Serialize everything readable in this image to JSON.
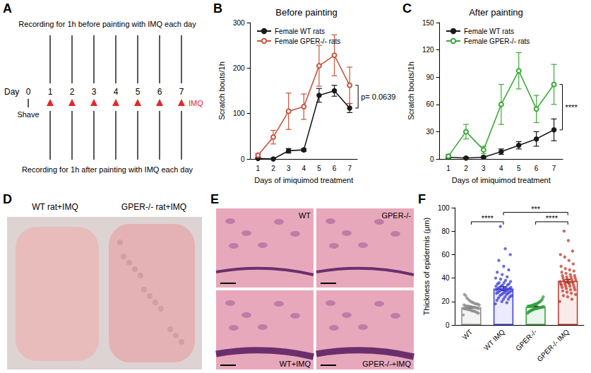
{
  "panel_labels": [
    "A",
    "B",
    "C",
    "D",
    "E",
    "F"
  ],
  "timeline": {
    "top_text": "Recording for 1h before painting with IMQ each day",
    "bottom_text": "Recording for 1h after painting with IMQ each day",
    "axis_label": "Day",
    "days": [
      0,
      1,
      2,
      3,
      4,
      5,
      6,
      7
    ],
    "shave_label": "Shave",
    "treatment_label": "IMQ",
    "treatment_days": [
      1,
      2,
      3,
      4,
      5,
      6,
      7
    ],
    "color": "#e8262a"
  },
  "chart_data": [
    {
      "type": "line",
      "title": "Before painting",
      "x_label": "Days of imiquimod treatment",
      "y_label": "Scratch bouts/1h",
      "categories": [
        "1",
        "2",
        "3",
        "4",
        "5",
        "6",
        "7"
      ],
      "ylim": [
        0,
        300
      ],
      "yticks": [
        0,
        100,
        200,
        300
      ],
      "legend": "upper left",
      "annotation": "p= 0.0639",
      "series": [
        {
          "name": "Female WT rats",
          "color": "#1a1a1a",
          "marker": "filled circle",
          "values": [
            1,
            0,
            18,
            20,
            140,
            150,
            112
          ],
          "errors": [
            1,
            1,
            5,
            3,
            15,
            12,
            10
          ]
        },
        {
          "name": "Female GPER-/- rats",
          "color": "#c8553d",
          "marker": "open circle",
          "values": [
            8,
            48,
            105,
            115,
            205,
            228,
            162
          ],
          "errors": [
            4,
            15,
            40,
            28,
            45,
            45,
            40
          ]
        }
      ]
    },
    {
      "type": "line",
      "title": "After painting",
      "x_label": "Days of imiquimod treatment",
      "y_label": "Scratch bouts/1h",
      "categories": [
        "1",
        "2",
        "3",
        "4",
        "5",
        "6",
        "7"
      ],
      "ylim": [
        0,
        150
      ],
      "yticks": [
        0,
        30,
        60,
        90,
        120,
        150
      ],
      "legend": "upper left",
      "annotation": "****",
      "series": [
        {
          "name": "Female WT rats",
          "color": "#1a1a1a",
          "marker": "filled circle",
          "values": [
            2,
            1,
            2,
            8,
            15,
            22,
            32
          ],
          "errors": [
            1,
            1,
            1,
            3,
            4,
            8,
            12
          ]
        },
        {
          "name": "Female GPER-/- rats",
          "color": "#3aaa35",
          "marker": "open circle",
          "values": [
            3,
            30,
            10,
            60,
            97,
            55,
            82
          ],
          "errors": [
            2,
            8,
            4,
            22,
            20,
            15,
            22
          ]
        }
      ]
    },
    {
      "type": "bar",
      "y_label": "Thickness of epidermis (μm)",
      "categories": [
        "WT",
        "WT IMQ",
        "GPER-/-",
        "GPER-/- IMQ"
      ],
      "colors": [
        "#8c8c8c",
        "#3b3bd6",
        "#2e9e3a",
        "#c0392b"
      ],
      "values": [
        15,
        31,
        15.5,
        37.5
      ],
      "errors": [
        0.8,
        1.6,
        0.6,
        1.4
      ],
      "ylim": [
        0,
        100
      ],
      "yticks": [
        0,
        20,
        40,
        60,
        80,
        100
      ],
      "points": [
        [
          8.5,
          10,
          10.5,
          11,
          11.5,
          12,
          12,
          12.5,
          13,
          13,
          13.5,
          13.5,
          14,
          14,
          14,
          14.5,
          14.5,
          15,
          15,
          15,
          15.5,
          15.5,
          16,
          16,
          16,
          16.5,
          17,
          17,
          17.5,
          18,
          18,
          18.5,
          19,
          19.5,
          20,
          21,
          22,
          23,
          25,
          26
        ],
        [
          18,
          19,
          20,
          21,
          22,
          22,
          23,
          24,
          24,
          25,
          25,
          26,
          26,
          27,
          27,
          27,
          28,
          28,
          28,
          29,
          29,
          29,
          30,
          30,
          30,
          30,
          31,
          31,
          31,
          32,
          32,
          32,
          33,
          33,
          34,
          34,
          35,
          35,
          36,
          36,
          37,
          38,
          39,
          40,
          41,
          43,
          45,
          47,
          50,
          55,
          60,
          65,
          84
        ],
        [
          10,
          11,
          11.5,
          12,
          12.5,
          13,
          13,
          13.5,
          14,
          14,
          14,
          14.5,
          14.5,
          15,
          15,
          15,
          15.5,
          15.5,
          16,
          16,
          16,
          16.5,
          16.5,
          17,
          17,
          17.5,
          18,
          18,
          18.5,
          19,
          19.5,
          20,
          21,
          22,
          24
        ],
        [
          20,
          22,
          24,
          25,
          26,
          27,
          28,
          29,
          30,
          30,
          31,
          32,
          32,
          33,
          33,
          34,
          34,
          35,
          35,
          35,
          36,
          36,
          37,
          37,
          37,
          38,
          38,
          38,
          39,
          39,
          40,
          40,
          41,
          41,
          42,
          42,
          43,
          44,
          45,
          46,
          47,
          48,
          50,
          52,
          55,
          58,
          60,
          63,
          72,
          80
        ]
      ],
      "comparisons": [
        {
          "between": [
            "WT",
            "WT IMQ"
          ],
          "label": "****"
        },
        {
          "between": [
            "WT IMQ",
            "GPER-/- IMQ"
          ],
          "label": "***"
        },
        {
          "between": [
            "GPER-/-",
            "GPER-/- IMQ"
          ],
          "label": "****"
        }
      ]
    }
  ],
  "photo": {
    "labels": [
      "WT rat+IMQ",
      "GPER-/- rat+IMQ"
    ]
  },
  "histology": {
    "labels": [
      "WT",
      "GPER-/-",
      "WT+IMQ",
      "GPER-/-+IMQ"
    ]
  }
}
